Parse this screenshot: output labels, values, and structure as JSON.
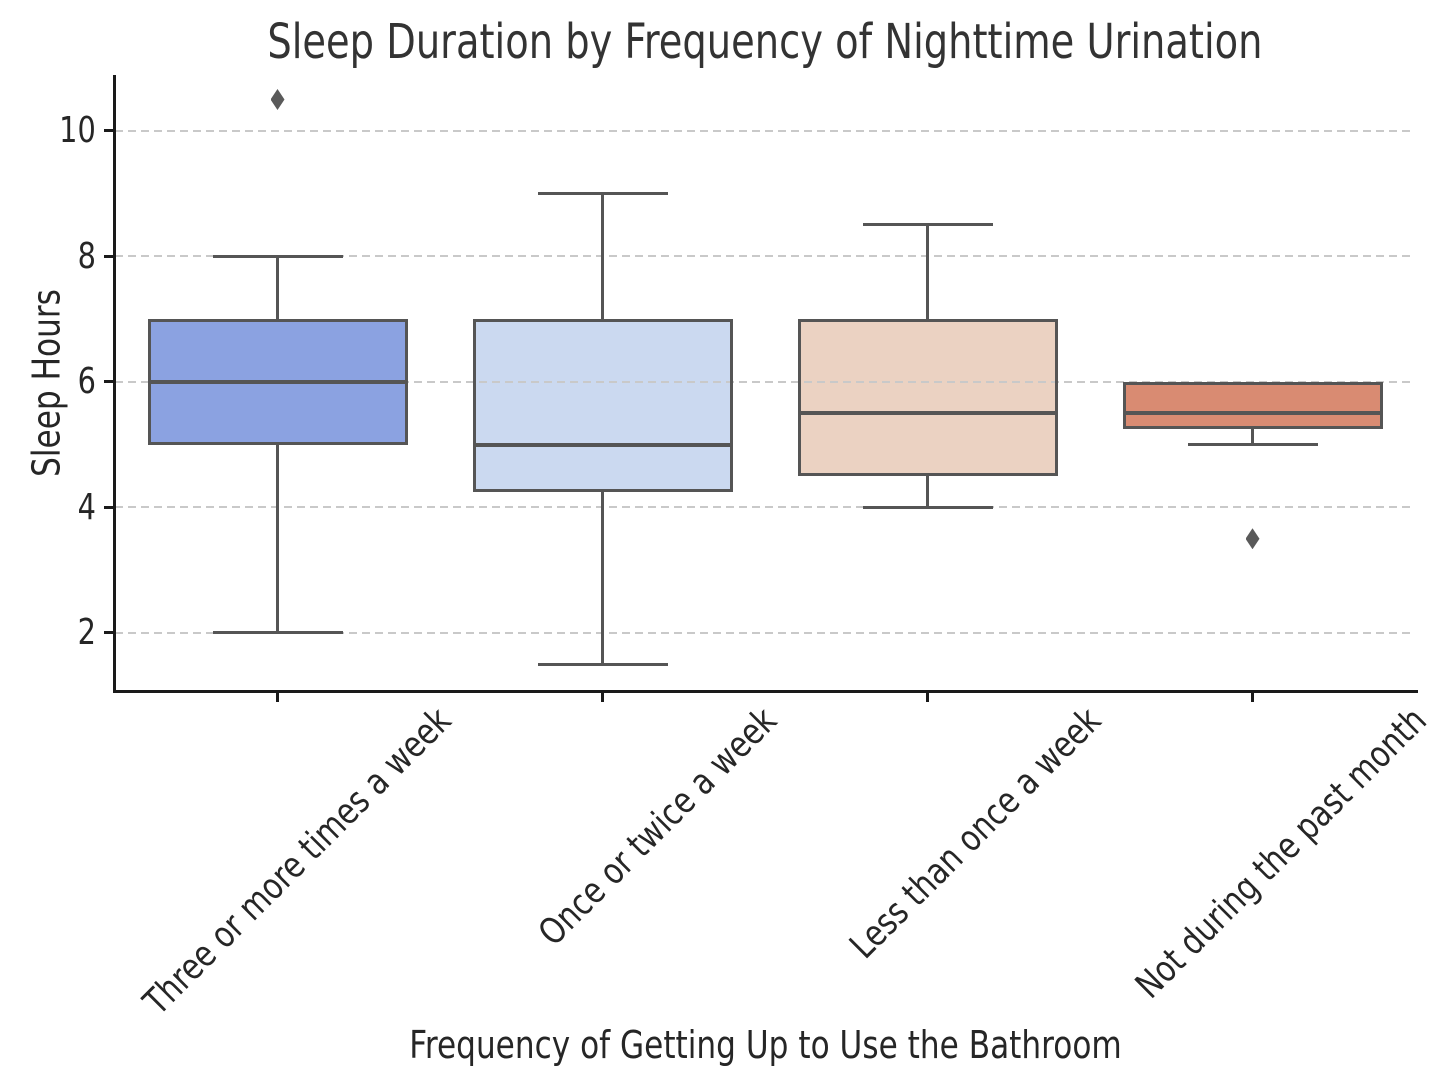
{
  "chart_data": {
    "type": "box",
    "title": "Sleep Duration by Frequency of Nighttime Urination",
    "xlabel": "Frequency of Getting Up to Use the Bathroom",
    "ylabel": "Sleep Hours",
    "yticks": [
      2,
      4,
      6,
      8,
      10
    ],
    "ylim": [
      1.09,
      10.89
    ],
    "grid": "dashed-horizontal",
    "categories": [
      "Three or more times a week",
      "Once or twice a week",
      "Less than once a week",
      "Not during the past month"
    ],
    "boxes": [
      {
        "category": "Three or more times a week",
        "whisker_low": 2.0,
        "q1": 5.0,
        "median": 6.0,
        "q3": 7.0,
        "whisker_high": 8.0,
        "outliers": [
          10.5
        ],
        "fill_color": "#8ba2e1"
      },
      {
        "category": "Once or twice a week",
        "whisker_low": 1.5,
        "q1": 4.25,
        "median": 5.0,
        "q3": 7.0,
        "whisker_high": 9.0,
        "outliers": [],
        "fill_color": "#cbd9f0"
      },
      {
        "category": "Less than once a week",
        "whisker_low": 4.0,
        "q1": 4.5,
        "median": 5.5,
        "q3": 7.0,
        "whisker_high": 8.5,
        "outliers": [],
        "fill_color": "#ebd2c2"
      },
      {
        "category": "Not during the past month",
        "whisker_low": 5.0,
        "q1": 5.25,
        "median": 5.5,
        "q3": 6.0,
        "whisker_high": 6.0,
        "outliers": [
          3.5
        ],
        "fill_color": "#d98b72"
      }
    ],
    "colors": {
      "line": "#555555",
      "grid": "#c9c9c9",
      "spine": "#1a1a1a",
      "outlier": "#5a5a5a",
      "title_text": "#333333",
      "text": "#262626"
    }
  }
}
